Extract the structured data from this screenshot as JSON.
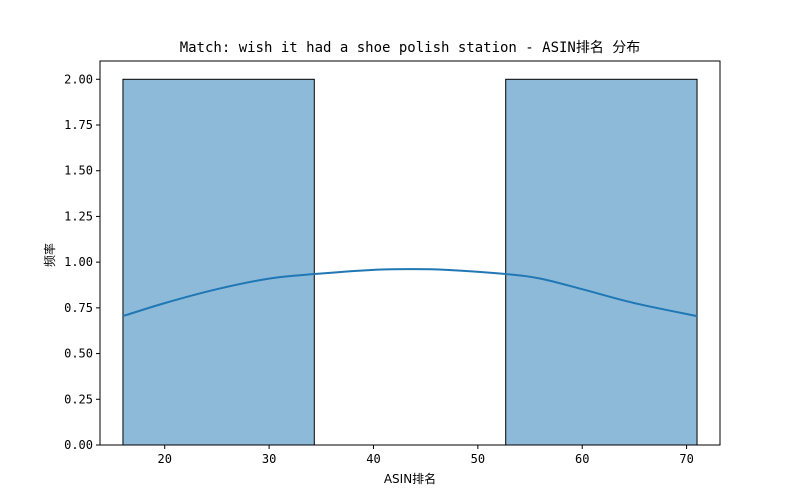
{
  "chart_data": {
    "type": "bar",
    "title": "Match: wish it had a shoe polish station - ASIN排名 分布",
    "xlabel": "ASIN排名",
    "ylabel": "频率",
    "xlim": [
      13.8,
      73.2
    ],
    "ylim": [
      0,
      2.1
    ],
    "x_ticks": [
      20,
      30,
      40,
      50,
      60,
      70
    ],
    "y_ticks": [
      "0.00",
      "0.25",
      "0.50",
      "0.75",
      "1.00",
      "1.25",
      "1.50",
      "1.75",
      "2.00"
    ],
    "bins": [
      {
        "start": 16,
        "end": 34.33,
        "count": 2
      },
      {
        "start": 34.33,
        "end": 52.67,
        "count": 0
      },
      {
        "start": 52.67,
        "end": 71,
        "count": 2
      }
    ],
    "kde": {
      "x": [
        16,
        20,
        25,
        30,
        34.33,
        40,
        43.5,
        47,
        52.67,
        56,
        60,
        65,
        71
      ],
      "y": [
        0.705,
        0.776,
        0.852,
        0.91,
        0.935,
        0.958,
        0.962,
        0.958,
        0.935,
        0.91,
        0.852,
        0.776,
        0.705
      ]
    },
    "grid": false,
    "colors": {
      "bar_fill": "#8ebad9",
      "bar_edge": "#000000",
      "kde_line": "#1f77b4",
      "axes": "#000000"
    }
  }
}
